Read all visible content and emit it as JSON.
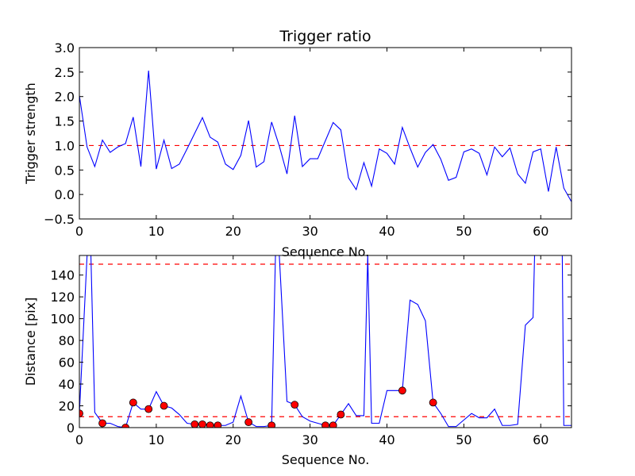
{
  "chart_data": [
    {
      "type": "line",
      "title": "Trigger ratio",
      "xlabel": "Sequence No.",
      "ylabel": "Trigger strength",
      "xlim": [
        0,
        64
      ],
      "ylim": [
        -0.5,
        3.0
      ],
      "xticks": [
        0,
        10,
        20,
        30,
        40,
        50,
        60
      ],
      "xtick_labels": [
        "0",
        "10",
        "20",
        "30",
        "40",
        "50",
        "60"
      ],
      "yticks": [
        -0.5,
        0.0,
        0.5,
        1.0,
        1.5,
        2.0,
        2.5,
        3.0
      ],
      "ytick_labels": [
        "−0.5",
        "0.0",
        "0.5",
        "1.0",
        "1.5",
        "2.0",
        "2.5",
        "3.0"
      ],
      "series": [
        {
          "name": "trigger strength",
          "color": "#0000ff",
          "x": [
            0,
            1,
            2,
            3,
            4,
            5,
            6,
            7,
            8,
            9,
            10,
            11,
            12,
            13,
            14,
            15,
            16,
            17,
            18,
            19,
            20,
            21,
            22,
            23,
            24,
            25,
            26,
            27,
            28,
            29,
            30,
            31,
            32,
            33,
            34,
            35,
            36,
            37,
            38,
            39,
            40,
            41,
            42,
            43,
            44,
            45,
            46,
            47,
            48,
            49,
            50,
            51,
            52,
            53,
            54,
            55,
            56,
            57,
            58,
            59,
            60,
            61,
            62,
            63,
            64
          ],
          "y": [
            2.02,
            0.97,
            0.57,
            1.11,
            0.86,
            0.97,
            1.04,
            1.58,
            0.57,
            2.53,
            0.52,
            1.11,
            0.53,
            0.62,
            0.93,
            1.25,
            1.57,
            1.17,
            1.07,
            0.62,
            0.51,
            0.8,
            1.51,
            0.56,
            0.67,
            1.48,
            0.99,
            0.42,
            1.61,
            0.57,
            0.73,
            0.73,
            1.1,
            1.47,
            1.32,
            0.34,
            0.1,
            0.65,
            0.17,
            0.93,
            0.84,
            0.62,
            1.37,
            0.95,
            0.56,
            0.86,
            1.02,
            0.72,
            0.29,
            0.35,
            0.87,
            0.93,
            0.84,
            0.4,
            0.97,
            0.77,
            0.95,
            0.42,
            0.23,
            0.87,
            0.93,
            0.06,
            0.97,
            0.13,
            -0.15
          ]
        }
      ],
      "reference_lines": [
        {
          "axis": "y",
          "value": 1.0,
          "color": "#ff0000",
          "style": "dashed"
        }
      ]
    },
    {
      "type": "line",
      "title": "",
      "xlabel": "Sequence No.",
      "ylabel": "Distance [pix]",
      "xlim": [
        0,
        64
      ],
      "ylim": [
        0,
        158
      ],
      "xticks": [
        0,
        10,
        20,
        30,
        40,
        50,
        60
      ],
      "xtick_labels": [
        "0",
        "10",
        "20",
        "30",
        "40",
        "50",
        "60"
      ],
      "yticks": [
        0,
        20,
        40,
        60,
        80,
        100,
        120,
        140
      ],
      "ytick_labels": [
        "0",
        "20",
        "40",
        "60",
        "80",
        "100",
        "120",
        "140"
      ],
      "series": [
        {
          "name": "distance",
          "color": "#0000ff",
          "x": [
            0,
            1,
            1.5,
            2,
            3,
            4,
            5,
            6,
            7,
            8,
            9,
            10,
            11,
            12,
            13,
            14,
            15,
            16,
            17,
            18,
            19,
            20,
            21,
            22,
            23,
            24,
            25,
            25.5,
            26,
            27,
            28,
            29,
            30,
            31,
            32,
            33,
            34,
            35,
            36,
            37,
            37.5,
            38,
            39,
            40,
            41,
            42,
            43,
            44,
            45,
            46,
            47,
            48,
            49,
            50,
            51,
            52,
            53,
            54,
            55,
            56,
            57,
            58,
            59,
            59.2,
            62.8,
            63,
            64
          ],
          "y": [
            13,
            158,
            158,
            14,
            4,
            4,
            1,
            0,
            23,
            17,
            17,
            33,
            20,
            18,
            12,
            4,
            3,
            3,
            2,
            2,
            2,
            5,
            29,
            5,
            1,
            1,
            2,
            158,
            158,
            24,
            21,
            10,
            6,
            4,
            2,
            2,
            12,
            22,
            11,
            11,
            158,
            4,
            4,
            34,
            34,
            34,
            117,
            113,
            98,
            23,
            13,
            1,
            1,
            7,
            13,
            9,
            9,
            17,
            2,
            2,
            3,
            94,
            101,
            158,
            158,
            2,
            2
          ]
        },
        {
          "name": "markers",
          "color": "#ff0000",
          "x": [
            0,
            3,
            6,
            7,
            9,
            11,
            15,
            16,
            17,
            18,
            22,
            25,
            28,
            32,
            33,
            34,
            42,
            46
          ],
          "y": [
            13,
            4,
            0,
            23,
            17,
            20,
            3,
            3,
            2,
            2,
            5,
            2,
            21,
            2,
            2,
            12,
            34,
            23
          ]
        }
      ],
      "reference_lines": [
        {
          "axis": "y",
          "value": 10,
          "color": "#ff0000",
          "style": "dashed"
        },
        {
          "axis": "y",
          "value": 150,
          "color": "#ff0000",
          "style": "dashed"
        }
      ]
    }
  ]
}
